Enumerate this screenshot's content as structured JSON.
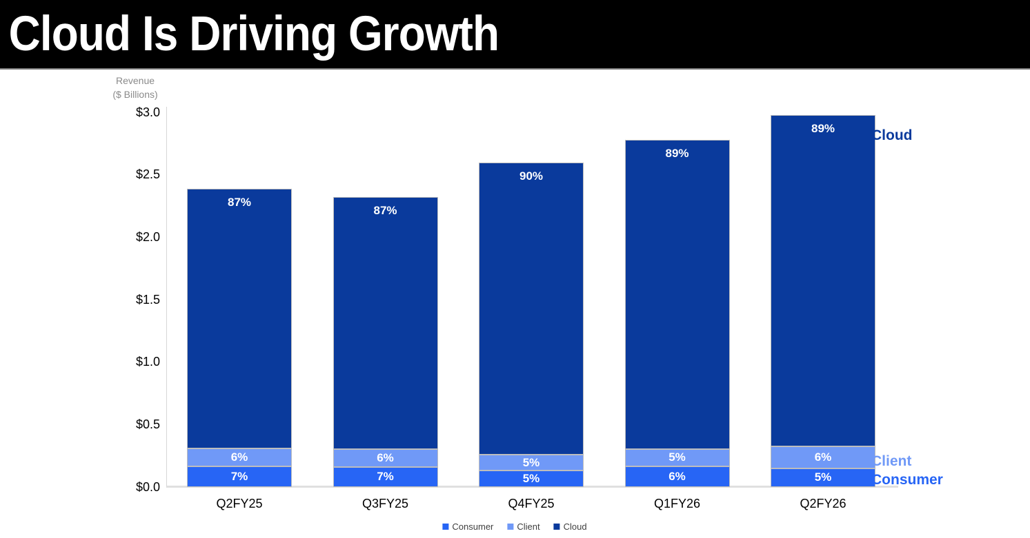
{
  "header": {
    "title": "Cloud Is Driving Growth"
  },
  "y_axis": {
    "title_line1": "Revenue",
    "title_line2": "($ Billions)"
  },
  "annotations": {
    "cloud_label": "Cloud",
    "client_label": "Client",
    "consumer_label": "Consumer"
  },
  "chart_data": {
    "type": "bar",
    "stacked": true,
    "title": "Cloud Is Driving Growth",
    "ylabel": "Revenue ($ Billions)",
    "ylim": [
      0,
      3.0
    ],
    "grid": false,
    "y_ticks": [
      {
        "label": "$3.0",
        "value": 3.0
      },
      {
        "label": "$2.5",
        "value": 2.5
      },
      {
        "label": "$2.0",
        "value": 2.0
      },
      {
        "label": "$1.5",
        "value": 1.5
      },
      {
        "label": "$1.0",
        "value": 1.0
      },
      {
        "label": "$0.5",
        "value": 0.5
      },
      {
        "label": "$0.0",
        "value": 0.0
      }
    ],
    "categories": [
      "Q2FY25",
      "Q3FY25",
      "Q4FY25",
      "Q1FY26",
      "Q2FY26"
    ],
    "totals_billions": [
      2.39,
      2.32,
      2.6,
      2.78,
      2.98
    ],
    "series": [
      {
        "name": "Consumer",
        "color": "#2765f5",
        "percent_of_total": [
          7,
          7,
          5,
          6,
          5
        ]
      },
      {
        "name": "Client",
        "color": "#7099f7",
        "percent_of_total": [
          6,
          6,
          5,
          5,
          6
        ]
      },
      {
        "name": "Cloud",
        "color": "#0a3a9c",
        "percent_of_total": [
          87,
          87,
          90,
          89,
          89
        ]
      }
    ],
    "legend": {
      "position": "bottom",
      "items": [
        "Consumer",
        "Client",
        "Cloud"
      ]
    }
  },
  "colors": {
    "banner_bg": "#000000",
    "banner_text": "#ffffff",
    "consumer": "#2765f5",
    "client": "#7099f7",
    "cloud": "#0a3a9c",
    "axis_text": "#8a8a8a",
    "tick_text": "#000000",
    "bar_outline": "#bdbdbd"
  }
}
